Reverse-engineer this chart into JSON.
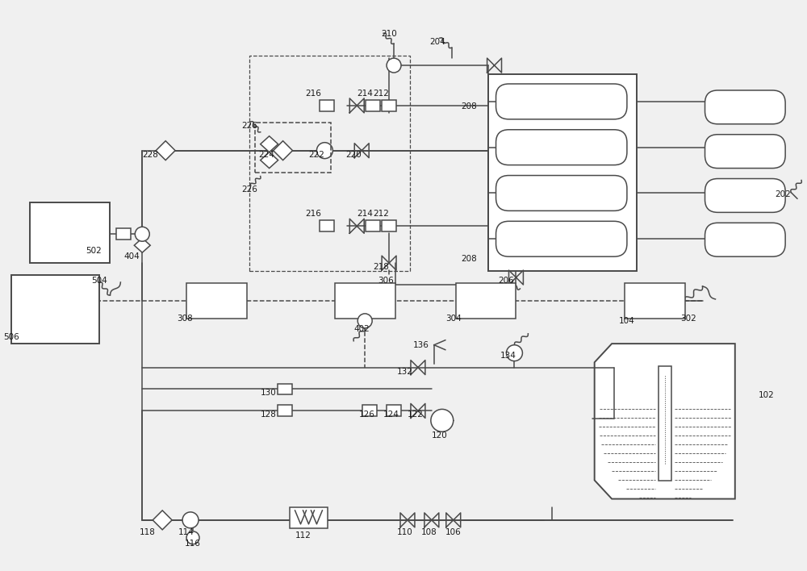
{
  "bg_color": "#f0f0f0",
  "line_color": "#4a4a4a",
  "label_color": "#1a1a1a",
  "fig_width": 10.0,
  "fig_height": 7.08,
  "dpi": 100
}
